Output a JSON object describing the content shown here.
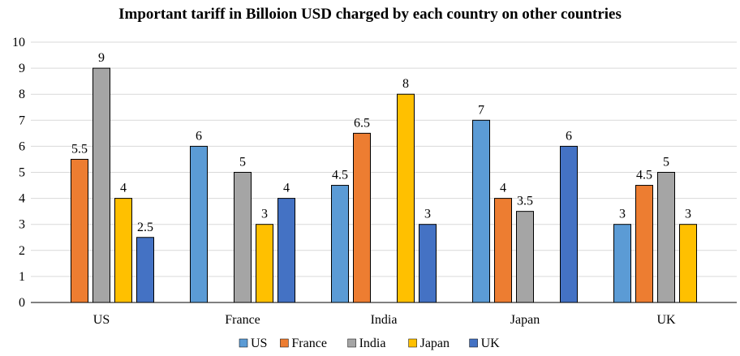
{
  "chart_data": {
    "type": "bar",
    "title": "Important tariff in Billoion USD charged by each country on other countries",
    "xlabel": "",
    "ylabel": "",
    "categories": [
      "US",
      "France",
      "India",
      "Japan",
      "UK"
    ],
    "ylim": [
      0,
      10
    ],
    "yticks": [
      0,
      1,
      2,
      3,
      4,
      5,
      6,
      7,
      8,
      9,
      10
    ],
    "grid": true,
    "legend_position": "bottom",
    "series": [
      {
        "name": "US",
        "color": "#5B9BD5",
        "values": [
          null,
          6,
          4.5,
          7,
          3
        ],
        "labels": [
          "",
          "6",
          "4.5",
          "7",
          "3"
        ]
      },
      {
        "name": "France",
        "color": "#ED7D31",
        "values": [
          5.5,
          null,
          6.5,
          4,
          4.5
        ],
        "labels": [
          "5.5",
          "",
          "6.5",
          "4",
          "4.5"
        ]
      },
      {
        "name": "India",
        "color": "#A5A5A5",
        "values": [
          9,
          5,
          null,
          3.5,
          5
        ],
        "labels": [
          "9",
          "5",
          "",
          "3.5",
          "5"
        ]
      },
      {
        "name": "Japan",
        "color": "#FFC000",
        "values": [
          4,
          3,
          8,
          null,
          3
        ],
        "labels": [
          "4",
          "3",
          "8",
          "",
          "3"
        ]
      },
      {
        "name": "UK",
        "color": "#4472C4",
        "values": [
          2.5,
          4,
          3,
          6,
          null
        ],
        "labels": [
          "2.5",
          "4",
          "3",
          "6",
          ""
        ]
      }
    ]
  }
}
